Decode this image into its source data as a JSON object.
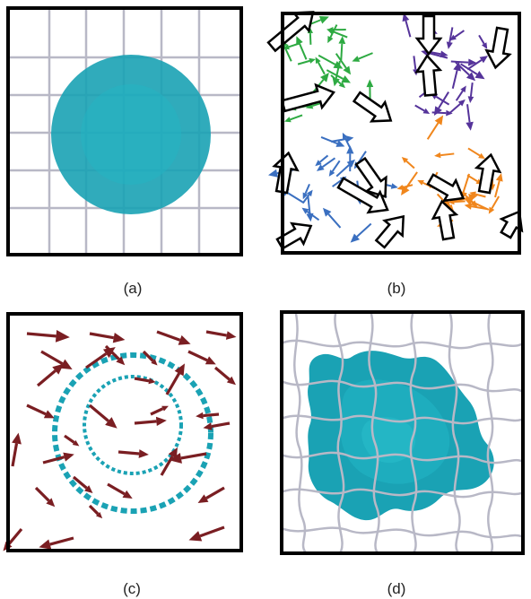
{
  "panels": [
    {
      "id": "a",
      "caption": "(a)"
    },
    {
      "id": "b",
      "caption": "(b)"
    },
    {
      "id": "c",
      "caption": "(c)"
    },
    {
      "id": "d",
      "caption": "(d)"
    }
  ],
  "colors": {
    "frame": "#000000",
    "grid": "#b8b8c6",
    "teal": "#1aa2b4",
    "teal_light": "#22b6c6",
    "green": "#2eaa42",
    "purple": "#55339a",
    "blue": "#3a6fc0",
    "orange": "#f0861c",
    "maroon": "#7a1e22"
  }
}
